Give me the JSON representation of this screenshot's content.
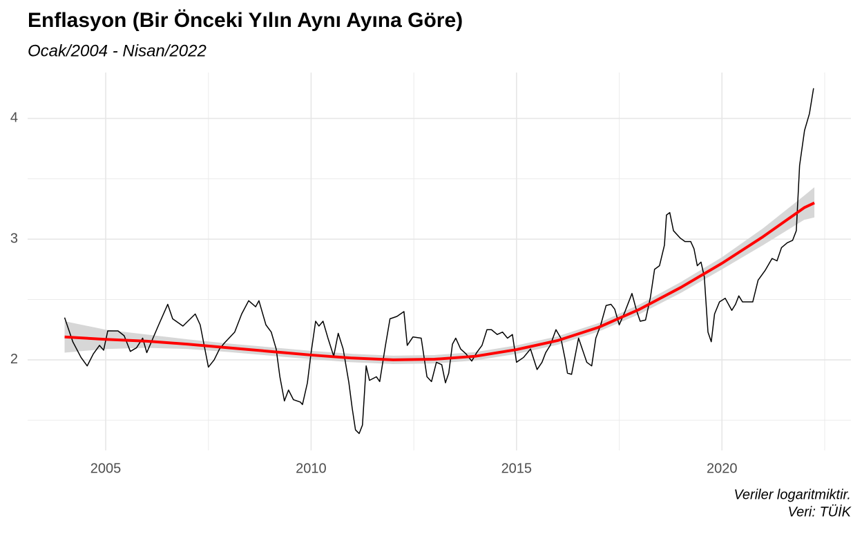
{
  "chart_data": {
    "type": "line",
    "title": "Enflasyon (Bir Önceki Yılın Aynı Ayına Göre)",
    "subtitle": "Ocak/2004 - Nisan/2022",
    "caption": [
      "Veriler logaritmiktir.",
      "Veri: TÜİK"
    ],
    "xlim": [
      2003.1,
      2023.14
    ],
    "ylim": [
      1.25,
      4.38
    ],
    "xticks": [
      2005,
      2010,
      2015,
      2020
    ],
    "yticks": [
      2,
      3,
      4
    ],
    "xminor": [
      2007.5,
      2012.5,
      2017.5,
      2022.5
    ],
    "yminor": [
      1.5,
      2.5,
      3.5
    ],
    "grid": true,
    "series": [
      {
        "color": "#000000",
        "x": [
          2004.0,
          2004.2,
          2004.4,
          2004.55,
          2004.7,
          2004.85,
          2004.95,
          2005.05,
          2005.3,
          2005.45,
          2005.6,
          2005.75,
          2005.9,
          2006.0,
          2006.29,
          2006.51,
          2006.63,
          2006.88,
          2007.18,
          2007.3,
          2007.5,
          2007.64,
          2007.77,
          2007.89,
          2008.14,
          2008.31,
          2008.48,
          2008.65,
          2008.73,
          2008.9,
          2009.03,
          2009.15,
          2009.24,
          2009.35,
          2009.45,
          2009.57,
          2009.74,
          2009.79,
          2009.91,
          2010.0,
          2010.11,
          2010.19,
          2010.29,
          2010.41,
          2010.55,
          2010.66,
          2010.78,
          2010.92,
          2011.0,
          2011.08,
          2011.17,
          2011.25,
          2011.34,
          2011.42,
          2011.59,
          2011.67,
          2011.81,
          2011.92,
          2012.09,
          2012.26,
          2012.34,
          2012.48,
          2012.68,
          2012.82,
          2012.93,
          2013.05,
          2013.18,
          2013.27,
          2013.35,
          2013.44,
          2013.52,
          2013.64,
          2013.77,
          2013.91,
          2014.03,
          2014.16,
          2014.28,
          2014.39,
          2014.53,
          2014.66,
          2014.78,
          2014.9,
          2015.0,
          2015.17,
          2015.34,
          2015.5,
          2015.62,
          2015.71,
          2015.82,
          2015.96,
          2016.08,
          2016.18,
          2016.24,
          2016.34,
          2016.51,
          2016.63,
          2016.71,
          2016.83,
          2016.93,
          2017.05,
          2017.18,
          2017.3,
          2017.39,
          2017.5,
          2017.64,
          2017.81,
          2017.92,
          2018.01,
          2018.14,
          2018.26,
          2018.36,
          2018.48,
          2018.6,
          2018.65,
          2018.73,
          2018.82,
          2018.98,
          2019.1,
          2019.24,
          2019.32,
          2019.4,
          2019.49,
          2019.57,
          2019.66,
          2019.74,
          2019.82,
          2019.94,
          2020.08,
          2020.16,
          2020.24,
          2020.33,
          2020.41,
          2020.5,
          2020.66,
          2020.75,
          2020.88,
          2021.05,
          2021.22,
          2021.34,
          2021.45,
          2021.59,
          2021.72,
          2021.81,
          2021.89,
          2022.01,
          2022.13,
          2022.23
        ],
        "values": [
          2.35,
          2.15,
          2.02,
          1.95,
          2.05,
          2.12,
          2.08,
          2.24,
          2.24,
          2.2,
          2.07,
          2.1,
          2.18,
          2.06,
          2.29,
          2.46,
          2.34,
          2.28,
          2.38,
          2.29,
          1.94,
          2.0,
          2.09,
          2.14,
          2.23,
          2.38,
          2.49,
          2.44,
          2.49,
          2.29,
          2.23,
          2.09,
          1.86,
          1.66,
          1.75,
          1.67,
          1.65,
          1.63,
          1.81,
          2.06,
          2.32,
          2.28,
          2.32,
          2.18,
          2.03,
          2.22,
          2.09,
          1.81,
          1.6,
          1.42,
          1.39,
          1.46,
          1.95,
          1.83,
          1.86,
          1.82,
          2.12,
          2.34,
          2.36,
          2.4,
          2.12,
          2.19,
          2.18,
          1.86,
          1.82,
          1.98,
          1.96,
          1.81,
          1.89,
          2.13,
          2.18,
          2.09,
          2.05,
          1.99,
          2.06,
          2.12,
          2.25,
          2.25,
          2.21,
          2.23,
          2.18,
          2.21,
          1.98,
          2.02,
          2.09,
          1.92,
          1.98,
          2.06,
          2.12,
          2.25,
          2.18,
          2.01,
          1.89,
          1.88,
          2.18,
          2.06,
          1.98,
          1.95,
          2.18,
          2.29,
          2.45,
          2.46,
          2.42,
          2.29,
          2.4,
          2.55,
          2.41,
          2.32,
          2.33,
          2.52,
          2.75,
          2.78,
          2.95,
          3.2,
          3.22,
          3.07,
          3.01,
          2.98,
          2.98,
          2.92,
          2.78,
          2.81,
          2.69,
          2.23,
          2.15,
          2.38,
          2.48,
          2.51,
          2.46,
          2.41,
          2.46,
          2.53,
          2.48,
          2.48,
          2.48,
          2.66,
          2.74,
          2.84,
          2.82,
          2.93,
          2.97,
          2.99,
          3.07,
          3.61,
          3.9,
          4.04,
          4.25
        ]
      },
      {
        "color": "#ff0000",
        "band_color": "#d3d3d3",
        "x": [
          2004,
          2005,
          2006,
          2007,
          2008,
          2009,
          2010,
          2011,
          2012,
          2013,
          2014,
          2015,
          2016,
          2017,
          2018,
          2019,
          2020,
          2021,
          2022,
          2022.25
        ],
        "values": [
          2.19,
          2.17,
          2.155,
          2.13,
          2.1,
          2.07,
          2.04,
          2.015,
          2.0,
          2.005,
          2.03,
          2.085,
          2.16,
          2.27,
          2.42,
          2.6,
          2.8,
          3.02,
          3.26,
          3.3
        ],
        "lower": [
          2.06,
          2.09,
          2.1,
          2.09,
          2.065,
          2.035,
          2.005,
          1.98,
          1.965,
          1.97,
          1.995,
          2.05,
          2.125,
          2.235,
          2.38,
          2.555,
          2.75,
          2.95,
          3.16,
          3.18
        ],
        "upper": [
          2.32,
          2.25,
          2.21,
          2.17,
          2.135,
          2.105,
          2.075,
          2.05,
          2.035,
          2.04,
          2.065,
          2.12,
          2.195,
          2.305,
          2.46,
          2.645,
          2.85,
          3.09,
          3.36,
          3.43
        ]
      }
    ]
  }
}
